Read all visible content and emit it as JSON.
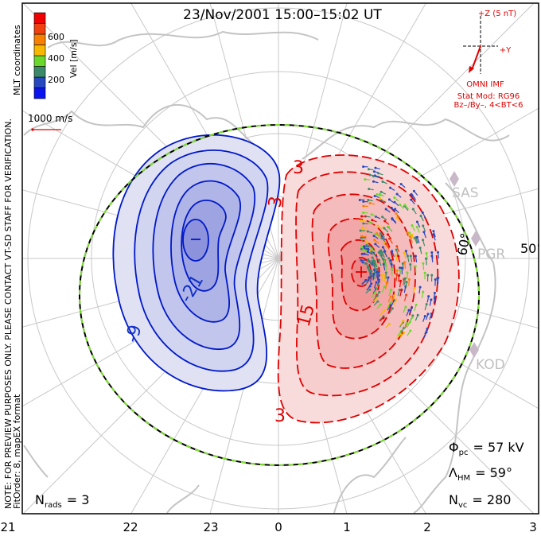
{
  "title": "23/Nov/2001  15:00–15:02 UT",
  "side_notes": {
    "note": "NOTE: FOR PREVIEW PURPOSES ONLY. PLEASE CONTACT VT-SD STAFF FOR VERIFICATION.",
    "fit": "FitOrder: 8, mapEX format",
    "coords": "MLT coordinates"
  },
  "colorbar": {
    "label": "Vel [m/s]",
    "ticks": [
      "200",
      "400",
      "600"
    ],
    "colors": [
      "#0a14f0",
      "#2848c0",
      "#3a8a6a",
      "#6ad82a",
      "#f8b800",
      "#f88000",
      "#f04010",
      "#f00000"
    ]
  },
  "scale_vector": {
    "label": "1000 m/s"
  },
  "imf": {
    "z_label": "+Z (5 nT)",
    "y_label": "+Y",
    "source": "OMNI IMF",
    "model": "Stat Mod: RG96",
    "condition": "Bz–/By–, 4<BT<6",
    "color": "#e00000"
  },
  "latitude_labels": [
    "60°",
    "50°"
  ],
  "radars": [
    "SAS",
    "PGR",
    "KOD"
  ],
  "contour_labels": {
    "neg": [
      "-9",
      "-21"
    ],
    "pos": [
      "3",
      "3",
      "15",
      "3"
    ]
  },
  "stats": {
    "phi_pc": {
      "symbol": "Φ",
      "sub": "pc",
      "value": "= 57 kV"
    },
    "lambda_hm": {
      "symbol": "Λ",
      "sub": "HM",
      "value": "= 59°"
    },
    "n_vc": {
      "symbol": "N",
      "sub": "vc",
      "value": "= 280"
    },
    "n_rads": {
      "symbol": "N",
      "sub": "rads",
      "value": "= 3"
    }
  },
  "mlt_axis": [
    "21",
    "22",
    "23",
    "0",
    "1",
    "2",
    "3"
  ]
}
